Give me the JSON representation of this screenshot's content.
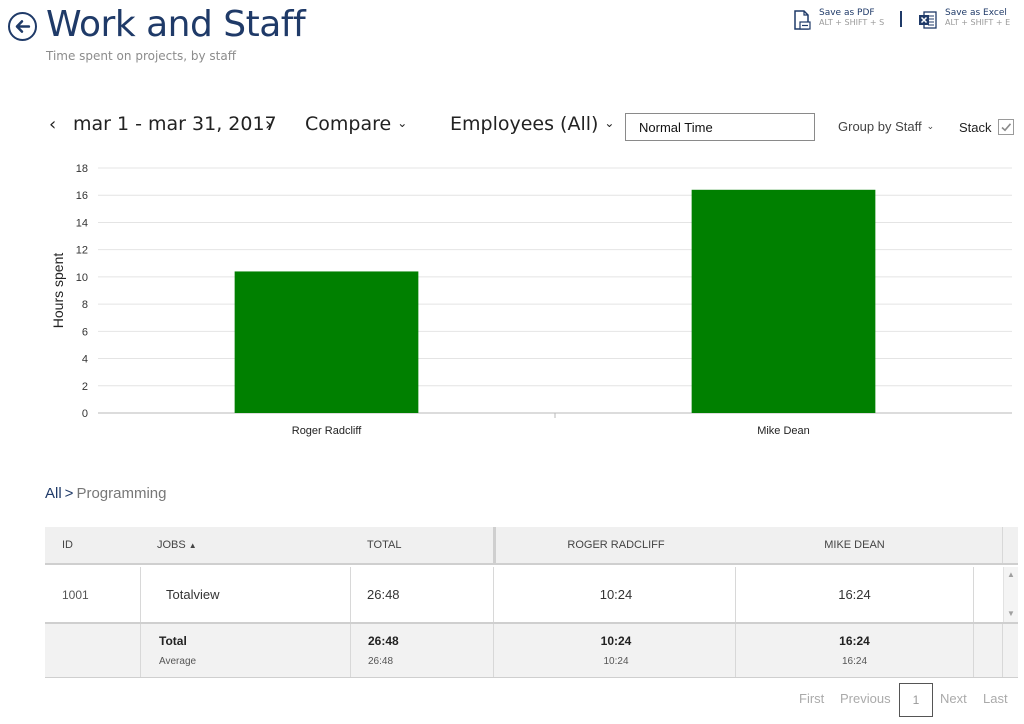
{
  "header": {
    "title": "Work and Staff",
    "subtitle": "Time spent on projects, by staff"
  },
  "exports": {
    "pdf": {
      "label": "Save as PDF",
      "shortcut": "ALT + SHIFT + S"
    },
    "excel": {
      "label": "Save as Excel",
      "shortcut": "ALT + SHIFT + E"
    }
  },
  "filters": {
    "prev": "‹",
    "date_range": "mar 1 - mar 31, 2017",
    "next": "›",
    "compare": "Compare",
    "employees": "Employees (All)",
    "time_type": "Normal Time",
    "group_by": "Group by Staff",
    "stack_label": "Stack",
    "stack_checked": true
  },
  "chart_data": {
    "type": "bar",
    "categories": [
      "Roger Radcliff",
      "Mike Dean"
    ],
    "values": [
      10.4,
      16.4
    ],
    "title": "",
    "xlabel": "",
    "ylabel": "Hours spent",
    "ylim": [
      0,
      18
    ],
    "yticks": [
      0,
      2,
      4,
      6,
      8,
      10,
      12,
      14,
      16,
      18
    ],
    "bar_color": "#008000",
    "grid": true,
    "legend": "none"
  },
  "breadcrumb": {
    "root": "All",
    "separator": ">",
    "current": "Programming"
  },
  "table": {
    "headers": {
      "id": "ID",
      "jobs": "JOBS",
      "jobs_sort": "▲",
      "total": "TOTAL",
      "staff1": "ROGER RADCLIFF",
      "staff2": "MIKE DEAN"
    },
    "row": {
      "id": "1001",
      "job": "Totalview",
      "total": "26:48",
      "staff1": "10:24",
      "staff2": "16:24"
    },
    "totals": {
      "label": "Total",
      "avg_label": "Average",
      "total": "26:48",
      "total_avg": "26:48",
      "staff1": "10:24",
      "staff1_avg": "10:24",
      "staff2": "16:24",
      "staff2_avg": "16:24"
    }
  },
  "pager": {
    "first": "First",
    "previous": "Previous",
    "current_page": "1",
    "next": "Next",
    "last": "Last"
  },
  "colors": {
    "title": "#1f3a68",
    "bar": "#008000"
  }
}
